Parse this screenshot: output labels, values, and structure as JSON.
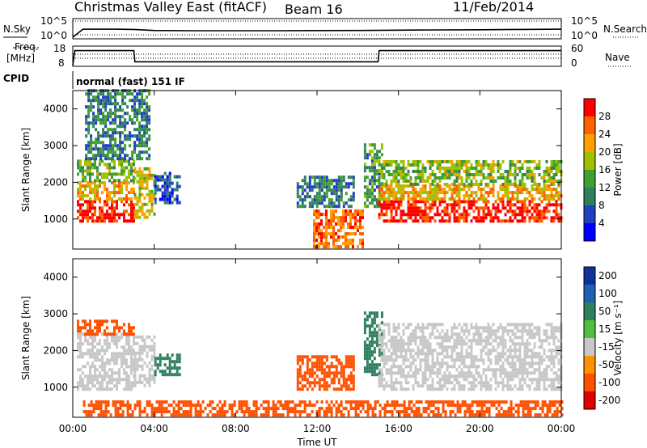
{
  "header": {
    "station": "Christmas Valley East (fitACF)",
    "beam": "Beam 16",
    "date": "11/Feb/2014"
  },
  "top_panel": {
    "left_label": "N.Sky",
    "right_label": "N.Search",
    "left_ticks": [
      "10^5",
      "10^0"
    ],
    "right_ticks": [
      "10^5",
      "10^0"
    ]
  },
  "freq_panel": {
    "left_label_1": "Freq.",
    "left_label_2": "[MHz]",
    "right_label": "Nave",
    "left_ticks": [
      "18",
      "8"
    ],
    "right_ticks": [
      "60",
      "0"
    ]
  },
  "cpid": {
    "label": "CPID",
    "value": "normal (fast) 151 IF"
  },
  "chart_data": [
    {
      "type": "line",
      "panel": "noise",
      "series": [
        {
          "name": "N.Sky",
          "x": [
            0,
            0.5,
            2,
            3,
            4,
            6,
            8,
            10,
            12,
            14,
            16,
            18,
            20,
            22,
            24
          ],
          "values": [
            1,
            300,
            300,
            250,
            120,
            100,
            100,
            100,
            110,
            120,
            150,
            180,
            200,
            250,
            300
          ]
        }
      ],
      "xlim": [
        0,
        24
      ],
      "ylim": [
        1,
        100000
      ],
      "yscale": "log"
    },
    {
      "type": "line",
      "panel": "frequency",
      "series": [
        {
          "name": "Freq.",
          "x": [
            0,
            0.1,
            3,
            3.05,
            15,
            15.05,
            24
          ],
          "values": [
            8,
            16,
            16,
            10,
            10,
            16,
            16
          ]
        }
      ],
      "xlim": [
        0,
        24
      ],
      "ylim": [
        8,
        18
      ]
    },
    {
      "type": "heatmap",
      "panel": "power",
      "ylabel": "Slant Range [km]",
      "yticks": [
        "1000",
        "2000",
        "3000",
        "4000"
      ],
      "ylim": [
        180,
        4500
      ],
      "xlim": [
        0,
        24
      ],
      "colorbar": {
        "label": "Power [dB]",
        "ticks": [
          "4",
          "8",
          "12",
          "16",
          "20",
          "24",
          "28"
        ],
        "range": [
          0,
          30
        ],
        "colors": [
          "#0000ff",
          "#2040c0",
          "#308060",
          "#40a030",
          "#a0c000",
          "#ffa000",
          "#ff6000",
          "#ff0000"
        ]
      },
      "regions": [
        {
          "x0": 0.2,
          "x1": 3.0,
          "y0": 900,
          "y1": 1500,
          "value": 28
        },
        {
          "x0": 0.2,
          "x1": 3.0,
          "y0": 1500,
          "y1": 2000,
          "value": 20
        },
        {
          "x0": 0.2,
          "x1": 3.0,
          "y0": 2000,
          "y1": 2600,
          "value": 14
        },
        {
          "x0": 0.6,
          "x1": 3.8,
          "y0": 2600,
          "y1": 4500,
          "value": 9
        },
        {
          "x0": 3.0,
          "x1": 4.0,
          "y0": 1000,
          "y1": 2400,
          "value": 18
        },
        {
          "x0": 4.0,
          "x1": 5.2,
          "y0": 1400,
          "y1": 2200,
          "value": 6
        },
        {
          "x0": 11.0,
          "x1": 13.8,
          "y0": 1300,
          "y1": 2100,
          "value": 9
        },
        {
          "x0": 11.8,
          "x1": 14.3,
          "y0": 200,
          "y1": 1200,
          "value": 24
        },
        {
          "x0": 14.3,
          "x1": 15.2,
          "y0": 1300,
          "y1": 3000,
          "value": 12
        },
        {
          "x0": 15.0,
          "x1": 24.0,
          "y0": 900,
          "y1": 1500,
          "value": 28
        },
        {
          "x0": 15.0,
          "x1": 24.0,
          "y0": 1500,
          "y1": 1900,
          "value": 20
        },
        {
          "x0": 15.0,
          "x1": 24.0,
          "y0": 1900,
          "y1": 2600,
          "value": 15
        }
      ]
    },
    {
      "type": "heatmap",
      "panel": "velocity",
      "ylabel": "Slant Range [km]",
      "xlabel": "Time UT",
      "yticks": [
        "1000",
        "2000",
        "3000",
        "4000"
      ],
      "xticks": [
        "00:00",
        "04:00",
        "08:00",
        "12:00",
        "16:00",
        "20:00",
        "00:00"
      ],
      "ylim": [
        180,
        4500
      ],
      "xlim": [
        0,
        24
      ],
      "colorbar": {
        "label": "Velocity [m s⁻¹]",
        "ticks": [
          "200",
          "100",
          "50",
          "15",
          "-15",
          "-50",
          "-100",
          "-200"
        ],
        "colors": [
          "#1030a0",
          "#2060b0",
          "#308060",
          "#50c040",
          "#c8c8c8",
          "#ff9000",
          "#ff5000",
          "#e00000"
        ]
      },
      "regions": [
        {
          "x0": 0.2,
          "x1": 3.0,
          "y0": 900,
          "y1": 2400,
          "value": 0
        },
        {
          "x0": 0.2,
          "x1": 3.0,
          "y0": 2400,
          "y1": 2800,
          "value": -40
        },
        {
          "x0": 3.0,
          "x1": 4.0,
          "y0": 1000,
          "y1": 2400,
          "value": 0
        },
        {
          "x0": 4.0,
          "x1": 5.2,
          "y0": 1300,
          "y1": 1900,
          "value": 40
        },
        {
          "x0": 11.0,
          "x1": 13.8,
          "y0": 900,
          "y1": 1800,
          "value": -40
        },
        {
          "x0": 14.3,
          "x1": 15.2,
          "y0": 1300,
          "y1": 3000,
          "value": 40
        },
        {
          "x0": 15.0,
          "x1": 24.0,
          "y0": 900,
          "y1": 2700,
          "value": 0
        },
        {
          "x0": 0.5,
          "x1": 24.0,
          "y0": 200,
          "y1": 600,
          "value": -40
        }
      ]
    }
  ]
}
